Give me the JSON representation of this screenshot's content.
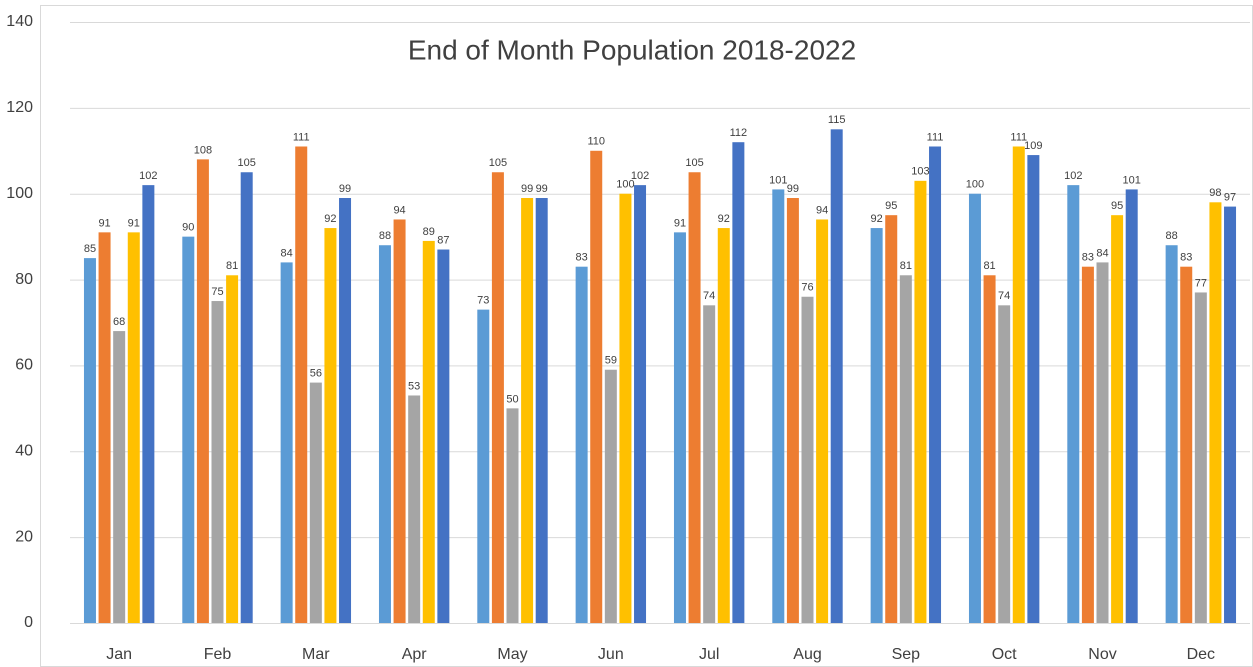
{
  "chart_data": {
    "type": "bar",
    "title": "End of Month Population 2018-2022",
    "categories": [
      "Jan",
      "Feb",
      "Mar",
      "Apr",
      "May",
      "Jun",
      "Jul",
      "Aug",
      "Sep",
      "Oct",
      "Nov",
      "Dec"
    ],
    "series": [
      {
        "color": "#5b9bd5",
        "values": [
          85,
          90,
          84,
          88,
          73,
          83,
          91,
          101,
          92,
          100,
          102,
          88
        ]
      },
      {
        "color": "#ed7d31",
        "values": [
          91,
          108,
          111,
          94,
          105,
          110,
          105,
          99,
          95,
          81,
          83,
          83
        ]
      },
      {
        "color": "#a5a5a5",
        "values": [
          68,
          75,
          56,
          53,
          50,
          59,
          74,
          76,
          81,
          74,
          84,
          77
        ]
      },
      {
        "color": "#ffc000",
        "values": [
          91,
          81,
          92,
          89,
          99,
          100,
          92,
          94,
          103,
          111,
          95,
          98
        ]
      },
      {
        "color": "#4472c4",
        "values": [
          102,
          105,
          99,
          87,
          99,
          102,
          112,
          115,
          111,
          109,
          101,
          97
        ]
      }
    ],
    "ylim": [
      0,
      140
    ],
    "yticks": [
      0,
      20,
      40,
      60,
      80,
      100,
      120,
      140
    ],
    "grid": true,
    "data_labels": true
  }
}
